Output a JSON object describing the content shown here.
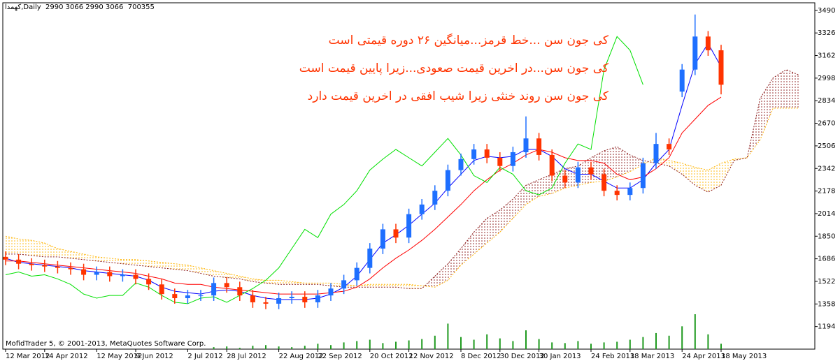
{
  "chart_data": {
    "type": "candlestick",
    "title": "کهمدا,Daily  2990 3066 2990 3066  700355",
    "annotations": [
      "کی جون سن ...خط قرمز...میانگین ۲۶ دوره قیمتی است",
      "کی جون سن...در اخرین قیمت صعودی...زیرا پایین قیمت است",
      "کی جون سن روند خنثی زیرا شیب افقی در اخرین قیمت دارد"
    ],
    "footer": "MofidTrader 5, © 2001-2013, MetaQuotes Software Corp.",
    "categories": [
      "12 Mar 2012",
      null,
      null,
      "14 Apr 2012",
      null,
      null,
      null,
      "12 May 2012",
      null,
      null,
      "9 Jun 2012",
      null,
      null,
      null,
      "2 Jul 2012",
      null,
      null,
      "28 Jul 2012",
      null,
      null,
      null,
      "22 Aug 2012",
      null,
      null,
      "22 Sep 2012",
      null,
      null,
      null,
      "20 Oct 2012",
      null,
      null,
      "12 Nov 2012",
      null,
      null,
      null,
      "8 Dec 2012",
      null,
      null,
      "30 Dec 2012",
      null,
      null,
      "30 Jan 2013",
      null,
      null,
      null,
      "24 Feb 2013",
      null,
      null,
      "18 Mar 2013",
      null,
      null,
      null,
      "24 Apr 2013",
      null,
      null,
      "18 May 2013",
      null,
      null,
      null,
      null,
      null,
      null
    ],
    "open": [
      1700,
      1680,
      1650,
      1640,
      1630,
      1620,
      1610,
      1570,
      1590,
      1560,
      1570,
      1540,
      1500,
      1430,
      1400,
      1420,
      1420,
      1510,
      1480,
      1420,
      1370,
      1360,
      1400,
      1410,
      1370,
      1420,
      1470,
      1530,
      1620,
      1760,
      1900,
      1840,
      2010,
      2080,
      2180,
      2330,
      2410,
      2480,
      2420,
      2360,
      2460,
      2560,
      2440,
      2290,
      2240,
      2350,
      2300,
      2180,
      2150,
      2200,
      2380,
      2520,
      2900,
      3060,
      3300,
      3200,
      null,
      null,
      null,
      null,
      null,
      null
    ],
    "high": [
      1740,
      1720,
      1690,
      1680,
      1670,
      1660,
      1650,
      1630,
      1630,
      1610,
      1610,
      1580,
      1540,
      1470,
      1460,
      1460,
      1550,
      1550,
      1520,
      1460,
      1410,
      1440,
      1450,
      1450,
      1460,
      1510,
      1570,
      1660,
      1800,
      1940,
      1940,
      2050,
      2120,
      2220,
      2370,
      2450,
      2520,
      2520,
      2460,
      2500,
      2720,
      2600,
      2480,
      2330,
      2390,
      2390,
      2340,
      2220,
      2240,
      2420,
      2600,
      2560,
      3100,
      3460,
      3340,
      3240,
      null,
      null,
      null,
      null,
      null,
      null
    ],
    "low": [
      1640,
      1610,
      1600,
      1590,
      1580,
      1570,
      1530,
      1530,
      1520,
      1520,
      1500,
      1460,
      1390,
      1360,
      1360,
      1380,
      1380,
      1440,
      1380,
      1330,
      1320,
      1320,
      1360,
      1330,
      1330,
      1380,
      1430,
      1490,
      1580,
      1720,
      1800,
      1800,
      1970,
      2040,
      2140,
      2290,
      2370,
      2380,
      2320,
      2320,
      2420,
      2400,
      2250,
      2200,
      2200,
      2260,
      2140,
      2110,
      2110,
      2160,
      2340,
      2440,
      2860,
      3020,
      3160,
      2880,
      null,
      null,
      null,
      null,
      null,
      null
    ],
    "close": [
      1680,
      1650,
      1640,
      1630,
      1620,
      1610,
      1570,
      1590,
      1560,
      1570,
      1540,
      1500,
      1430,
      1400,
      1420,
      1420,
      1510,
      1480,
      1420,
      1370,
      1360,
      1400,
      1410,
      1370,
      1420,
      1470,
      1530,
      1620,
      1760,
      1900,
      1840,
      2010,
      2080,
      2180,
      2330,
      2410,
      2480,
      2420,
      2360,
      2460,
      2560,
      2440,
      2290,
      2240,
      2350,
      2300,
      2180,
      2150,
      2200,
      2380,
      2520,
      2480,
      3060,
      3300,
      3200,
      2950,
      null,
      null,
      null,
      null,
      null,
      null
    ],
    "up_color": "#1e6fff",
    "down_color": "#ff3300",
    "lines": [
      {
        "color": "#0000ff",
        "values": [
          1690,
          1660,
          1650,
          1640,
          1630,
          1620,
          1600,
          1590,
          1580,
          1570,
          1560,
          1530,
          1480,
          1450,
          1440,
          1430,
          1450,
          1460,
          1450,
          1420,
          1400,
          1390,
          1390,
          1390,
          1400,
          1430,
          1480,
          1560,
          1680,
          1800,
          1860,
          1930,
          2010,
          2090,
          2200,
          2300,
          2400,
          2430,
          2420,
          2430,
          2480,
          2480,
          2430,
          2340,
          2300,
          2300,
          2250,
          2200,
          2200,
          2260,
          2380,
          2480,
          2800,
          3100,
          3250,
          3080,
          null,
          null,
          null,
          null,
          null,
          null
        ]
      },
      {
        "color": "#ff0000",
        "values": [
          1670,
          1670,
          1660,
          1650,
          1640,
          1630,
          1620,
          1610,
          1600,
          1590,
          1580,
          1560,
          1540,
          1510,
          1500,
          1500,
          1480,
          1470,
          1460,
          1450,
          1440,
          1430,
          1430,
          1430,
          1430,
          1440,
          1450,
          1480,
          1540,
          1620,
          1690,
          1750,
          1820,
          1900,
          1990,
          2080,
          2180,
          2260,
          2330,
          2380,
          2440,
          2480,
          2460,
          2420,
          2400,
          2400,
          2380,
          2300,
          2260,
          2280,
          2340,
          2420,
          2600,
          2700,
          2800,
          2860,
          null,
          null,
          null,
          null,
          null,
          null
        ]
      },
      {
        "color": "#00e000",
        "values": [
          1570,
          1590,
          1560,
          1570,
          1540,
          1500,
          1430,
          1400,
          1420,
          1420,
          1510,
          1480,
          1420,
          1370,
          1360,
          1400,
          1410,
          1370,
          1420,
          1470,
          1530,
          1620,
          1760,
          1900,
          1840,
          2010,
          2080,
          2180,
          2330,
          2410,
          2480,
          2420,
          2360,
          2460,
          2560,
          2440,
          2290,
          2240,
          2350,
          2300,
          2180,
          2150,
          2200,
          2380,
          2520,
          2480,
          3060,
          3300,
          3200,
          2950,
          null,
          null,
          null,
          null,
          null,
          null,
          null,
          null,
          null,
          null,
          null,
          null
        ]
      }
    ],
    "cloud": {
      "span_a": [
        1850,
        1830,
        1820,
        1800,
        1760,
        1740,
        1720,
        1700,
        1690,
        1680,
        1680,
        1670,
        1660,
        1650,
        1640,
        1620,
        1600,
        1580,
        1560,
        1540,
        1530,
        1530,
        1520,
        1510,
        1510,
        1510,
        1500,
        1490,
        1500,
        1500,
        1500,
        1500,
        1490,
        1480,
        1530,
        1640,
        1720,
        1800,
        1880,
        1980,
        2080,
        2140,
        2160,
        2200,
        2220,
        2240,
        2250,
        2280,
        2320,
        2370,
        2420,
        2400,
        2380,
        2350,
        2330,
        2380,
        2410,
        2420,
        2550,
        2780,
        2780,
        2780
      ],
      "span_b": [
        1720,
        1720,
        1710,
        1700,
        1700,
        1690,
        1680,
        1670,
        1660,
        1650,
        1640,
        1630,
        1620,
        1610,
        1600,
        1580,
        1560,
        1550,
        1540,
        1520,
        1510,
        1500,
        1500,
        1500,
        1500,
        1490,
        1480,
        1480,
        1480,
        1480,
        1480,
        1470,
        1470,
        1560,
        1650,
        1760,
        1880,
        1980,
        2040,
        2120,
        2220,
        2260,
        2300,
        2340,
        2360,
        2420,
        2470,
        2500,
        2440,
        2400,
        2380,
        2360,
        2300,
        2220,
        2170,
        2220,
        2400,
        2420,
        2850,
        3000,
        3060,
        3020
      ],
      "bull_color": "#ffb400",
      "bear_color": "#8b1a1a"
    },
    "volume": {
      "color": "#1f9a1f",
      "values": [
        null,
        null,
        null,
        null,
        null,
        null,
        null,
        null,
        null,
        null,
        null,
        null,
        null,
        null,
        null,
        null,
        3,
        4,
        2,
        5,
        6,
        4,
        3,
        5,
        8,
        6,
        10,
        12,
        14,
        9,
        11,
        13,
        15,
        20,
        38,
        18,
        14,
        22,
        16,
        12,
        28,
        15,
        10,
        9,
        12,
        8,
        10,
        11,
        14,
        18,
        24,
        20,
        34,
        52,
        22,
        8,
        null,
        null,
        null,
        null,
        null,
        null
      ]
    },
    "ylim": [
      1030,
      3545
    ],
    "yticks": [
      1194,
      1358,
      1522,
      1686,
      1850,
      2014,
      2178,
      2342,
      2506,
      2670,
      2834,
      2998,
      3162,
      3326,
      3490
    ]
  }
}
